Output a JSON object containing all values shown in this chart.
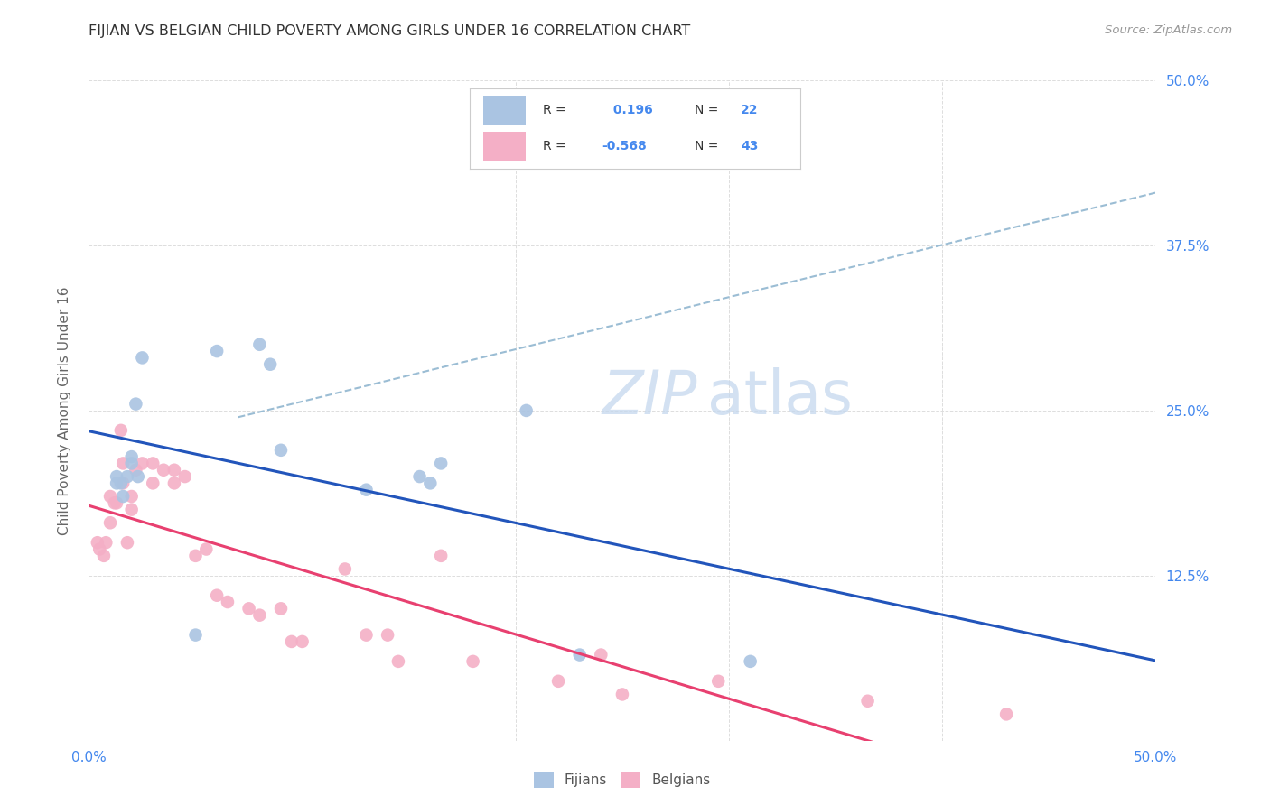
{
  "title": "FIJIAN VS BELGIAN CHILD POVERTY AMONG GIRLS UNDER 16 CORRELATION CHART",
  "source": "Source: ZipAtlas.com",
  "ylabel": "Child Poverty Among Girls Under 16",
  "xlim": [
    0.0,
    0.5
  ],
  "ylim": [
    0.0,
    0.5
  ],
  "xticks": [
    0.0,
    0.1,
    0.2,
    0.3,
    0.4,
    0.5
  ],
  "yticks": [
    0.0,
    0.125,
    0.25,
    0.375,
    0.5
  ],
  "legend_fijian_R": "0.196",
  "legend_fijian_N": "22",
  "legend_belgian_R": "-0.568",
  "legend_belgian_N": "43",
  "fijian_color": "#aac4e2",
  "belgian_color": "#f4afc6",
  "fijian_line_color": "#2255bb",
  "belgian_line_color": "#e84070",
  "dashed_line_color": "#9bbdd4",
  "grid_color": "#dddddd",
  "title_color": "#333333",
  "label_color": "#4488ee",
  "watermark_color": "#c5d8ee",
  "fijian_x": [
    0.013,
    0.013,
    0.015,
    0.016,
    0.018,
    0.02,
    0.02,
    0.022,
    0.023,
    0.025,
    0.05,
    0.06,
    0.08,
    0.085,
    0.09,
    0.13,
    0.155,
    0.16,
    0.165,
    0.205,
    0.23,
    0.31
  ],
  "fijian_y": [
    0.195,
    0.2,
    0.195,
    0.185,
    0.2,
    0.215,
    0.21,
    0.255,
    0.2,
    0.29,
    0.08,
    0.295,
    0.3,
    0.285,
    0.22,
    0.19,
    0.2,
    0.195,
    0.21,
    0.25,
    0.065,
    0.06
  ],
  "belgian_x": [
    0.004,
    0.005,
    0.007,
    0.008,
    0.01,
    0.01,
    0.012,
    0.013,
    0.015,
    0.016,
    0.016,
    0.018,
    0.02,
    0.02,
    0.022,
    0.025,
    0.03,
    0.03,
    0.035,
    0.04,
    0.04,
    0.045,
    0.05,
    0.055,
    0.06,
    0.065,
    0.075,
    0.08,
    0.09,
    0.095,
    0.1,
    0.12,
    0.13,
    0.14,
    0.145,
    0.165,
    0.18,
    0.22,
    0.24,
    0.25,
    0.295,
    0.365,
    0.43
  ],
  "belgian_y": [
    0.15,
    0.145,
    0.14,
    0.15,
    0.165,
    0.185,
    0.18,
    0.18,
    0.235,
    0.195,
    0.21,
    0.15,
    0.175,
    0.185,
    0.205,
    0.21,
    0.21,
    0.195,
    0.205,
    0.195,
    0.205,
    0.2,
    0.14,
    0.145,
    0.11,
    0.105,
    0.1,
    0.095,
    0.1,
    0.075,
    0.075,
    0.13,
    0.08,
    0.08,
    0.06,
    0.14,
    0.06,
    0.045,
    0.065,
    0.035,
    0.045,
    0.03,
    0.02
  ]
}
